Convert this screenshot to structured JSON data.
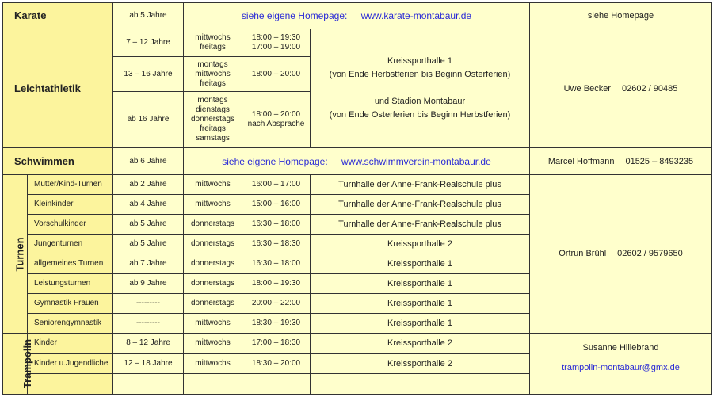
{
  "colors": {
    "category_bg": "#fcf49d",
    "cell_bg": "#ffffcc",
    "link": "#2a2ad6"
  },
  "karate": {
    "name": "Karate",
    "age": "ab 5 Jahre",
    "homepage_label": "siehe eigene Homepage:",
    "homepage_url": "www.karate-montabaur.de",
    "contact": "siehe Homepage"
  },
  "leichtathletik": {
    "name": "Leichtathletik",
    "rows": [
      {
        "age": "7 – 12 Jahre",
        "days": [
          "mittwochs",
          "freitags"
        ],
        "times": [
          "18:00 – 19:30",
          "17:00 – 19:00"
        ]
      },
      {
        "age": "13 – 16 Jahre",
        "days": [
          "montags",
          "mittwochs",
          "freitags"
        ],
        "times": [
          "18:00 – 20:00"
        ]
      },
      {
        "age": "ab 16 Jahre",
        "days": [
          "montags",
          "dienstags",
          "donnerstags",
          "freitags",
          "samstags"
        ],
        "times": [
          "18:00 – 20:00",
          "nach Absprache"
        ]
      }
    ],
    "location": [
      "Kreissporthalle 1",
      "(von Ende Herbstferien bis Beginn Osterferien)",
      "und Stadion Montabaur",
      "(von Ende Osterferien bis Beginn Herbstferien)"
    ],
    "contact_name": "Uwe Becker",
    "contact_phone": "02602 / 90485"
  },
  "schwimmen": {
    "name": "Schwimmen",
    "age": "ab 6 Jahre",
    "homepage_label": "siehe eigene Homepage:",
    "homepage_url": "www.schwimmverein-montabaur.de",
    "contact_name": "Marcel Hoffmann",
    "contact_phone": "01525 – 8493235"
  },
  "turnen": {
    "name": "Turnen",
    "rows": [
      {
        "group": "Mutter/Kind-Turnen",
        "age": "ab 2 Jahre",
        "day": "mittwochs",
        "time": "16:00 – 17:00",
        "location": "Turnhalle der Anne-Frank-Realschule plus"
      },
      {
        "group": "Kleinkinder",
        "age": "ab 4 Jahre",
        "day": "mittwochs",
        "time": "15:00 – 16:00",
        "location": "Turnhalle der Anne-Frank-Realschule plus"
      },
      {
        "group": "Vorschulkinder",
        "age": "ab 5 Jahre",
        "day": "donnerstags",
        "time": "16:30 – 18:00",
        "location": "Turnhalle der Anne-Frank-Realschule plus"
      },
      {
        "group": "Jungenturnen",
        "age": "ab 5 Jahre",
        "day": "donnerstags",
        "time": "16:30 – 18:30",
        "location": "Kreissporthalle 2"
      },
      {
        "group": "allgemeines Turnen",
        "age": "ab 7 Jahre",
        "day": "donnerstags",
        "time": "16:30 – 18:00",
        "location": "Kreissporthalle 1"
      },
      {
        "group": "Leistungsturnen",
        "age": "ab 9 Jahre",
        "day": "donnerstags",
        "time": "18:00 – 19:30",
        "location": "Kreissporthalle 1"
      },
      {
        "group": "Gymnastik Frauen",
        "age": "---------",
        "day": "donnerstags",
        "time": "20:00 – 22:00",
        "location": "Kreissporthalle 1"
      },
      {
        "group": "Seniorengymnastik",
        "age": "---------",
        "day": "mittwochs",
        "time": "18:30 – 19:30",
        "location": "Kreissporthalle 1"
      }
    ],
    "contact_name": "Ortrun Brühl",
    "contact_phone": "02602 / 9579650"
  },
  "trampolin": {
    "name": "Trampolin",
    "rows": [
      {
        "group": "Kinder",
        "age": "8 – 12 Jahre",
        "day": "mittwochs",
        "time": "17:00 – 18:30",
        "location": "Kreissporthalle 2"
      },
      {
        "group": "Kinder u.Jugendliche",
        "age": "12 – 18 Jahre",
        "day": "mittwochs",
        "time": "18:30 – 20:00",
        "location": "Kreissporthalle 2"
      }
    ],
    "contact_name": "Susanne Hillebrand",
    "contact_email": "trampolin-montabaur@gmx.de"
  }
}
